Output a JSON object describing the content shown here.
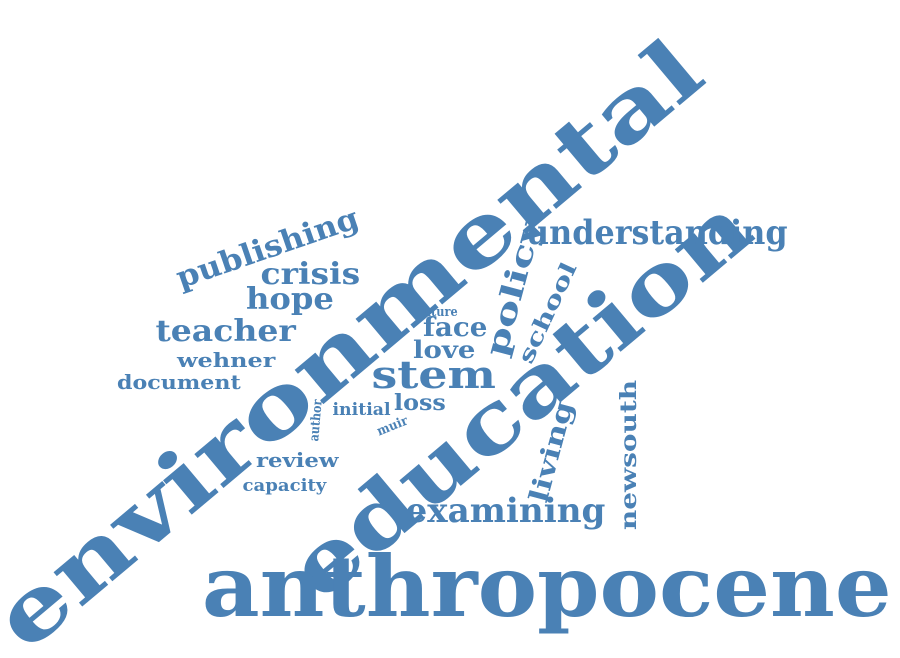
{
  "colors": {
    "word": "#4a81b5",
    "background": "#ffffff"
  },
  "words": [
    "environmental",
    "education",
    "anthropocene",
    "understanding",
    "publishing",
    "crisis",
    "hope",
    "teacher",
    "policy",
    "school",
    "wehner",
    "document",
    "stem",
    "face",
    "love",
    "future",
    "loss",
    "initial",
    "author",
    "muir",
    "review",
    "capacity",
    "living",
    "newsouth",
    "examining"
  ]
}
